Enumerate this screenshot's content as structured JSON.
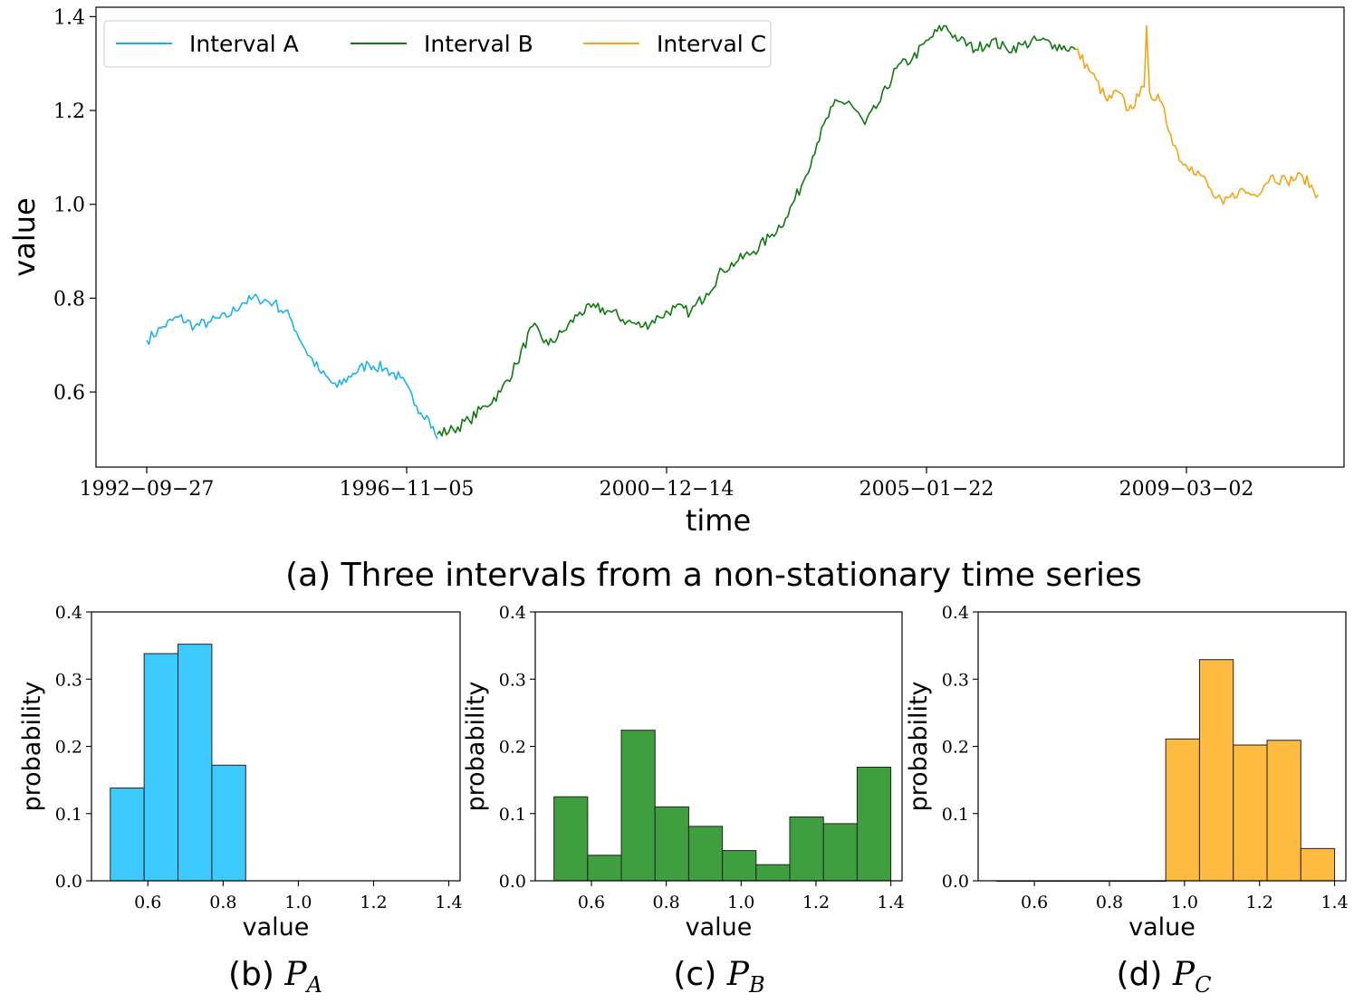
{
  "figure": {
    "caption_a": "(a) Three intervals from a non-stationary time series",
    "caption_b": "(b) ",
    "caption_c": "(c) ",
    "caption_d": "(d) ",
    "caption_b_math": "P",
    "caption_b_sub": "A",
    "caption_c_math": "P",
    "caption_c_sub": "B",
    "caption_d_math": "P",
    "caption_d_sub": "C"
  },
  "chart_data": [
    {
      "type": "line",
      "title": "",
      "xlabel": "time",
      "ylabel": "value",
      "x_tick_labels": [
        "1992−09−27",
        "1996−11−05",
        "2000−12−14",
        "2005−01−22",
        "2009−03−02"
      ],
      "x_ticks": [
        "1992-09-27",
        "1996-11-05",
        "2000-12-14",
        "2005-01-22",
        "2009-03-02"
      ],
      "ylim": [
        0.44,
        1.42
      ],
      "y_ticks": [
        0.6,
        0.8,
        1.0,
        1.2,
        1.4
      ],
      "y_tick_labels": [
        "0.6",
        "0.8",
        "1.0",
        "1.2",
        "1.4"
      ],
      "legend": "top-left",
      "grid": false,
      "series": [
        {
          "name": "Interval A",
          "color": "#1ab3ef",
          "x": [
            "1992-09-27",
            "1993-01-01",
            "1993-04-01",
            "1993-07-01",
            "1993-10-01",
            "1994-01-01",
            "1994-04-01",
            "1994-07-01",
            "1994-10-01",
            "1995-01-01",
            "1995-04-01",
            "1995-07-01",
            "1995-10-01",
            "1996-01-01",
            "1996-04-01",
            "1996-07-01",
            "1996-10-01",
            "1997-01-01",
            "1997-03-01",
            "1997-05-01"
          ],
          "values": [
            0.71,
            0.74,
            0.76,
            0.74,
            0.75,
            0.76,
            0.79,
            0.8,
            0.79,
            0.76,
            0.69,
            0.64,
            0.61,
            0.64,
            0.66,
            0.65,
            0.63,
            0.57,
            0.55,
            0.5
          ]
        },
        {
          "name": "Interval B",
          "color": "#0e7a0e",
          "x": [
            "1997-05-01",
            "1997-08-01",
            "1997-11-01",
            "1998-02-01",
            "1998-05-01",
            "1998-08-01",
            "1998-11-01",
            "1999-02-01",
            "1999-05-01",
            "1999-08-01",
            "1999-11-01",
            "2000-02-01",
            "2000-05-01",
            "2000-08-01",
            "2000-11-01",
            "2001-02-01",
            "2001-05-01",
            "2001-08-01",
            "2001-11-01",
            "2002-02-01",
            "2002-05-01",
            "2002-08-01",
            "2002-11-01",
            "2003-02-01",
            "2003-05-01",
            "2003-08-01",
            "2003-11-01",
            "2004-02-01",
            "2004-05-01",
            "2004-08-01",
            "2004-11-01",
            "2005-02-01",
            "2005-05-01",
            "2005-08-01",
            "2005-11-01",
            "2006-02-01",
            "2006-05-01",
            "2006-08-01",
            "2006-11-01",
            "2007-02-01",
            "2007-06-01"
          ],
          "values": [
            0.51,
            0.52,
            0.54,
            0.57,
            0.6,
            0.66,
            0.74,
            0.7,
            0.73,
            0.77,
            0.78,
            0.77,
            0.75,
            0.74,
            0.76,
            0.78,
            0.77,
            0.81,
            0.86,
            0.88,
            0.9,
            0.93,
            0.97,
            1.04,
            1.13,
            1.21,
            1.22,
            1.17,
            1.22,
            1.29,
            1.31,
            1.35,
            1.38,
            1.35,
            1.33,
            1.35,
            1.33,
            1.34,
            1.35,
            1.34,
            1.33
          ]
        },
        {
          "name": "Interval C",
          "color": "#f6a313",
          "x": [
            "2007-06-01",
            "2007-09-01",
            "2007-12-01",
            "2008-02-01",
            "2008-04-01",
            "2008-06-01",
            "2008-07-01",
            "2008-07-15",
            "2008-08-01",
            "2008-10-01",
            "2008-12-01",
            "2009-02-01",
            "2009-04-01",
            "2009-06-01",
            "2009-08-01",
            "2009-10-01",
            "2010-01-01",
            "2010-04-01",
            "2010-07-01",
            "2010-10-01",
            "2011-01-01",
            "2011-04-01"
          ],
          "values": [
            1.33,
            1.28,
            1.22,
            1.24,
            1.2,
            1.23,
            1.25,
            1.38,
            1.24,
            1.22,
            1.15,
            1.09,
            1.08,
            1.06,
            1.02,
            1.0,
            1.03,
            1.02,
            1.06,
            1.05,
            1.06,
            1.02
          ]
        }
      ]
    },
    {
      "type": "bar",
      "title": "",
      "xlabel": "value",
      "ylabel": "probability",
      "xlim": [
        0.45,
        1.43
      ],
      "ylim": [
        0.0,
        0.4
      ],
      "x_ticks": [
        0.6,
        0.8,
        1.0,
        1.2,
        1.4
      ],
      "y_ticks": [
        0.0,
        0.1,
        0.2,
        0.3,
        0.4
      ],
      "color": "#3ccaff",
      "bin_edges": [
        0.5,
        0.59,
        0.68,
        0.77,
        0.86
      ],
      "values": [
        0.138,
        0.338,
        0.352,
        0.172
      ]
    },
    {
      "type": "bar",
      "title": "",
      "xlabel": "value",
      "ylabel": "probability",
      "xlim": [
        0.45,
        1.43
      ],
      "ylim": [
        0.0,
        0.4
      ],
      "x_ticks": [
        0.6,
        0.8,
        1.0,
        1.2,
        1.4
      ],
      "y_ticks": [
        0.0,
        0.1,
        0.2,
        0.3,
        0.4
      ],
      "color": "#3f9f3f",
      "bin_edges": [
        0.5,
        0.59,
        0.68,
        0.77,
        0.86,
        0.95,
        1.04,
        1.13,
        1.22,
        1.31,
        1.4
      ],
      "values": [
        0.125,
        0.038,
        0.224,
        0.11,
        0.081,
        0.045,
        0.024,
        0.095,
        0.085,
        0.169
      ]
    },
    {
      "type": "bar",
      "title": "",
      "xlabel": "value",
      "ylabel": "probability",
      "xlim": [
        0.45,
        1.43
      ],
      "ylim": [
        0.0,
        0.4
      ],
      "x_ticks": [
        0.6,
        0.8,
        1.0,
        1.2,
        1.4
      ],
      "y_ticks": [
        0.0,
        0.1,
        0.2,
        0.3,
        0.4
      ],
      "color": "#ffbb3f",
      "bin_edges": [
        0.5,
        0.59,
        0.68,
        0.77,
        0.86,
        0.95,
        1.04,
        1.13,
        1.22,
        1.31,
        1.4
      ],
      "values": [
        0.0,
        0.0,
        0.0,
        0.0,
        0.0,
        0.211,
        0.329,
        0.202,
        0.209,
        0.048
      ]
    }
  ]
}
